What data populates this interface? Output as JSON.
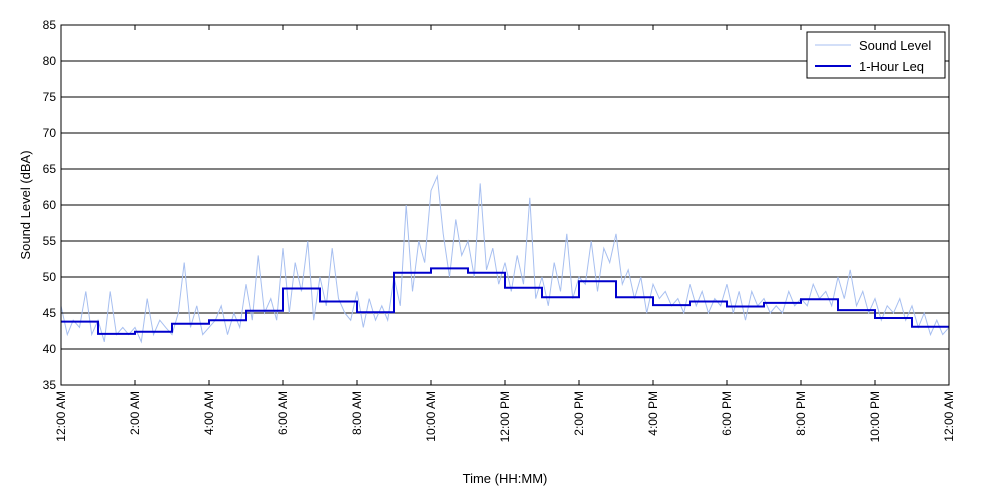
{
  "chart_data": {
    "type": "line",
    "title": "",
    "xlabel": "Time (HH:MM)",
    "ylabel": "Sound Level (dBA)",
    "ylim": [
      35,
      85
    ],
    "y_ticks": [
      35,
      40,
      45,
      50,
      55,
      60,
      65,
      70,
      75,
      80,
      85
    ],
    "xlim_hours": [
      0,
      24
    ],
    "x_ticks": [
      {
        "hour": 0,
        "label": "12:00 AM"
      },
      {
        "hour": 2,
        "label": "2:00 AM"
      },
      {
        "hour": 4,
        "label": "4:00 AM"
      },
      {
        "hour": 6,
        "label": "6:00 AM"
      },
      {
        "hour": 8,
        "label": "8:00 AM"
      },
      {
        "hour": 10,
        "label": "10:00 AM"
      },
      {
        "hour": 12,
        "label": "12:00 PM"
      },
      {
        "hour": 14,
        "label": "2:00 PM"
      },
      {
        "hour": 16,
        "label": "4:00 PM"
      },
      {
        "hour": 18,
        "label": "6:00 PM"
      },
      {
        "hour": 20,
        "label": "8:00 PM"
      },
      {
        "hour": 22,
        "label": "10:00 PM"
      },
      {
        "hour": 24,
        "label": "12:00 AM"
      }
    ],
    "grid": "horizontal",
    "legend_position": "top-right",
    "series": [
      {
        "name": "Sound Level",
        "style": "thin-line",
        "color": "#a7bff0",
        "x": [
          0.0,
          0.17,
          0.33,
          0.5,
          0.67,
          0.83,
          1.0,
          1.17,
          1.33,
          1.5,
          1.67,
          1.83,
          2.0,
          2.17,
          2.33,
          2.5,
          2.67,
          2.83,
          3.0,
          3.17,
          3.33,
          3.5,
          3.67,
          3.83,
          4.0,
          4.17,
          4.33,
          4.5,
          4.67,
          4.83,
          5.0,
          5.17,
          5.33,
          5.5,
          5.67,
          5.83,
          6.0,
          6.17,
          6.33,
          6.5,
          6.67,
          6.83,
          7.0,
          7.17,
          7.33,
          7.5,
          7.67,
          7.83,
          8.0,
          8.17,
          8.33,
          8.5,
          8.67,
          8.83,
          9.0,
          9.17,
          9.33,
          9.5,
          9.67,
          9.83,
          10.0,
          10.17,
          10.33,
          10.5,
          10.67,
          10.83,
          11.0,
          11.17,
          11.33,
          11.5,
          11.67,
          11.83,
          12.0,
          12.17,
          12.33,
          12.5,
          12.67,
          12.83,
          13.0,
          13.17,
          13.33,
          13.5,
          13.67,
          13.83,
          14.0,
          14.17,
          14.33,
          14.5,
          14.67,
          14.83,
          15.0,
          15.17,
          15.33,
          15.5,
          15.67,
          15.83,
          16.0,
          16.17,
          16.33,
          16.5,
          16.67,
          16.83,
          17.0,
          17.17,
          17.33,
          17.5,
          17.67,
          17.83,
          18.0,
          18.17,
          18.33,
          18.5,
          18.67,
          18.83,
          19.0,
          19.17,
          19.33,
          19.5,
          19.67,
          19.83,
          20.0,
          20.17,
          20.33,
          20.5,
          20.67,
          20.83,
          21.0,
          21.17,
          21.33,
          21.5,
          21.67,
          21.83,
          22.0,
          22.17,
          22.33,
          22.5,
          22.67,
          22.83,
          23.0,
          23.17,
          23.33,
          23.5,
          23.67,
          23.83,
          24.0
        ],
        "values": [
          46,
          42,
          44,
          43,
          48,
          42,
          44,
          41,
          48,
          42,
          43,
          42,
          43,
          41,
          47,
          42,
          44,
          43,
          42,
          45,
          52,
          43,
          46,
          42,
          43,
          44,
          46,
          42,
          45,
          43,
          49,
          44,
          53,
          45,
          47,
          44,
          54,
          45,
          52,
          48,
          55,
          44,
          50,
          46,
          54,
          47,
          45,
          44,
          48,
          43,
          47,
          44,
          46,
          44,
          50,
          46,
          60,
          48,
          55,
          52,
          62,
          64,
          56,
          50,
          58,
          53,
          55,
          50,
          63,
          51,
          54,
          49,
          52,
          48,
          53,
          49,
          61,
          47,
          50,
          46,
          52,
          48,
          56,
          47,
          50,
          49,
          55,
          48,
          54,
          52,
          56,
          49,
          51,
          47,
          50,
          45,
          49,
          47,
          48,
          46,
          47,
          45,
          49,
          46,
          48,
          45,
          47,
          46,
          49,
          45,
          48,
          44,
          48,
          46,
          47,
          45,
          46,
          45,
          48,
          46,
          47,
          46,
          49,
          47,
          48,
          46,
          50,
          47,
          51,
          46,
          48,
          45,
          47,
          44,
          46,
          45,
          47,
          44,
          46,
          43,
          45,
          42,
          44,
          42,
          43
        ],
        "note_unused": ""
      },
      {
        "name": "1-Hour Leq",
        "style": "step",
        "color": "#0000cc",
        "x": [
          0,
          1,
          2,
          3,
          4,
          5,
          6,
          7,
          8,
          9,
          10,
          11,
          12,
          13,
          14,
          15,
          16,
          17,
          18,
          19,
          20,
          21,
          22,
          23
        ],
        "values": [
          43.8,
          42.1,
          42.4,
          43.5,
          44.0,
          45.3,
          48.4,
          46.6,
          45.1,
          50.6,
          51.2,
          50.6,
          48.5,
          47.2,
          49.4,
          47.2,
          46.1,
          46.6,
          45.9,
          46.4,
          46.9,
          45.4,
          44.3,
          43.1
        ]
      }
    ]
  }
}
